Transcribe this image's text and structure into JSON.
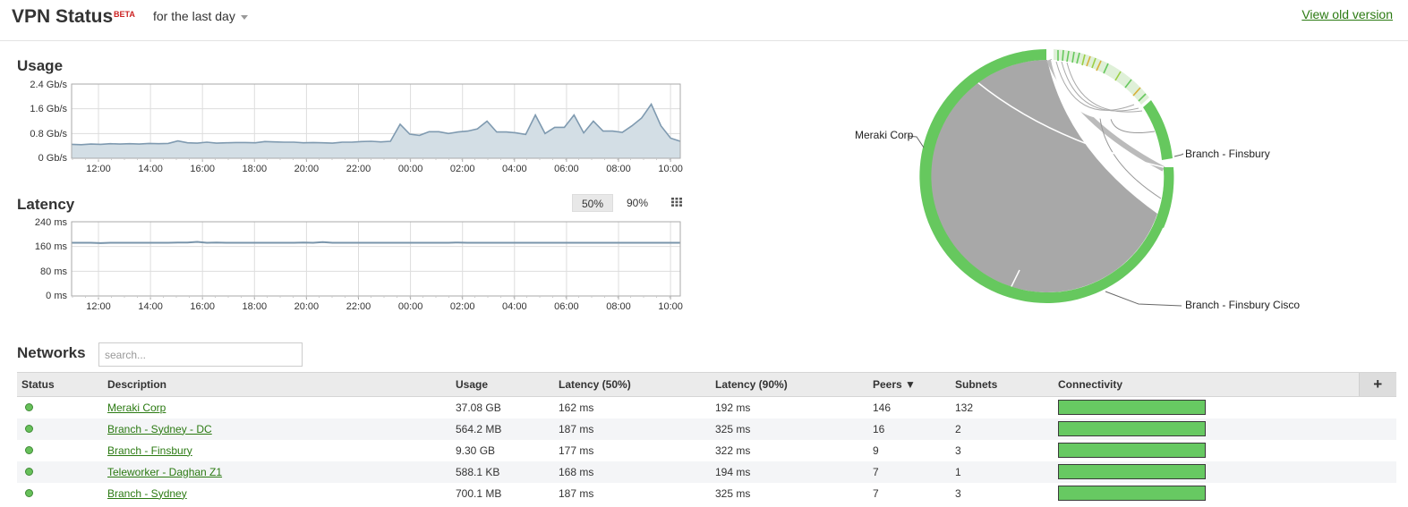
{
  "header": {
    "title": "VPN Status",
    "beta": "BETA",
    "range": "for the last day",
    "old_version": "View old version"
  },
  "usage": {
    "title": "Usage",
    "y_ticks": [
      "2.4 Gb/s",
      "1.6 Gb/s",
      "0.8 Gb/s",
      "0 Gb/s"
    ],
    "x_ticks": [
      "12:00",
      "14:00",
      "16:00",
      "18:00",
      "20:00",
      "22:00",
      "00:00",
      "02:00",
      "04:00",
      "06:00",
      "08:00",
      "10:00"
    ]
  },
  "latency": {
    "title": "Latency",
    "p50": "50%",
    "p90": "90%",
    "y_ticks": [
      "240 ms",
      "160 ms",
      "80 ms",
      "0 ms"
    ],
    "x_ticks": [
      "12:00",
      "14:00",
      "16:00",
      "18:00",
      "20:00",
      "22:00",
      "00:00",
      "02:00",
      "04:00",
      "06:00",
      "08:00",
      "10:00"
    ]
  },
  "chord": {
    "labels": [
      "Meraki Corp",
      "Branch - Finsbury",
      "Branch - Finsbury Cisco"
    ]
  },
  "networks": {
    "title": "Networks",
    "search_placeholder": "search...",
    "columns": [
      "Status",
      "Description",
      "Usage",
      "Latency (50%)",
      "Latency (90%)",
      "Peers ▼",
      "Subnets",
      "Connectivity"
    ],
    "add_label": "+",
    "rows": [
      {
        "name": "Meraki Corp",
        "usage": "37.08 GB",
        "lat50": "162 ms",
        "lat90": "192 ms",
        "peers": "146",
        "subnets": "132"
      },
      {
        "name": "Branch - Sydney - DC",
        "usage": "564.2 MB",
        "lat50": "187 ms",
        "lat90": "325 ms",
        "peers": "16",
        "subnets": "2"
      },
      {
        "name": "Branch - Finsbury",
        "usage": "9.30 GB",
        "lat50": "177 ms",
        "lat90": "322 ms",
        "peers": "9",
        "subnets": "3"
      },
      {
        "name": "Teleworker - Daghan Z1",
        "usage": "588.1 KB",
        "lat50": "168 ms",
        "lat90": "194 ms",
        "peers": "7",
        "subnets": "1"
      },
      {
        "name": "Branch - Sydney",
        "usage": "700.1 MB",
        "lat50": "187 ms",
        "lat90": "325 ms",
        "peers": "7",
        "subnets": "3"
      }
    ]
  },
  "chart_data": [
    {
      "type": "area",
      "title": "Usage",
      "xlabel": "",
      "ylabel": "",
      "ylim": [
        0,
        2.4
      ],
      "y_unit": "Gb/s",
      "x_ticks": [
        "12:00",
        "14:00",
        "16:00",
        "18:00",
        "20:00",
        "22:00",
        "00:00",
        "02:00",
        "04:00",
        "06:00",
        "08:00",
        "10:00"
      ],
      "series": [
        {
          "values": [
            0.45,
            0.44,
            0.46,
            0.45,
            0.47,
            0.46,
            0.47,
            0.46,
            0.48,
            0.47,
            0.48,
            0.56,
            0.5,
            0.49,
            0.52,
            0.49,
            0.5,
            0.51,
            0.51,
            0.5,
            0.54,
            0.53,
            0.52,
            0.52,
            0.5,
            0.51,
            0.5,
            0.49,
            0.52,
            0.52,
            0.54,
            0.55,
            0.53,
            0.55,
            1.1,
            0.78,
            0.74,
            0.86,
            0.86,
            0.8,
            0.85,
            0.88,
            0.95,
            1.2,
            0.85,
            0.85,
            0.82,
            0.77,
            1.4,
            0.8,
            1.0,
            1.0,
            1.4,
            0.82,
            1.2,
            0.88,
            0.88,
            0.84,
            1.05,
            1.3,
            1.75,
            1.05,
            0.65,
            0.55
          ]
        }
      ],
      "grid": true,
      "color": "#8aa4b8"
    },
    {
      "type": "line",
      "title": "Latency",
      "xlabel": "",
      "ylabel": "",
      "ylim": [
        0,
        240
      ],
      "y_unit": "ms",
      "x_ticks": [
        "12:00",
        "14:00",
        "16:00",
        "18:00",
        "20:00",
        "22:00",
        "00:00",
        "02:00",
        "04:00",
        "06:00",
        "08:00",
        "10:00"
      ],
      "series": [
        {
          "values": [
            172,
            172,
            172,
            171,
            172,
            172,
            172,
            172,
            172,
            172,
            172,
            173,
            173,
            175,
            172,
            173,
            172,
            172,
            172,
            172,
            172,
            172,
            172,
            172,
            173,
            172,
            174,
            172,
            172,
            172,
            172,
            172,
            172,
            172,
            172,
            172,
            172,
            172,
            172,
            172,
            173,
            172,
            172,
            172,
            172,
            172,
            172,
            172,
            172,
            172,
            172,
            172,
            172,
            172,
            172,
            172,
            172,
            172,
            172,
            172,
            172,
            172,
            172,
            172
          ]
        }
      ],
      "grid": true,
      "color": "#7a95ab"
    }
  ]
}
